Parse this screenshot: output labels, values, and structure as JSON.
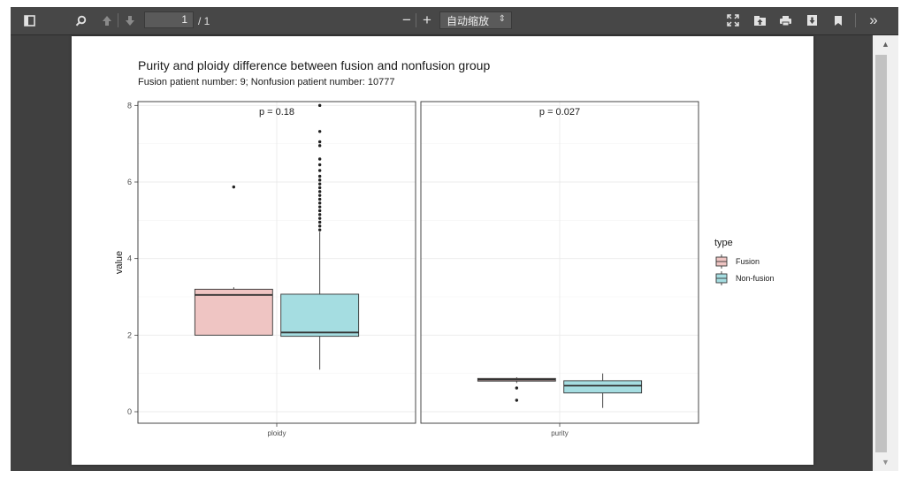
{
  "toolbar": {
    "page_number": "1",
    "page_count": "/ 1",
    "zoom_value": "自动缩放",
    "zoom_out_symbol": "−",
    "zoom_in_symbol": "+",
    "more_symbol": "»",
    "icons": [
      "sidebar-toggle-icon",
      "search-icon",
      "previous-page-icon",
      "next-page-icon",
      "zoom-out-icon",
      "zoom-in-icon",
      "presentation-mode-icon",
      "open-file-icon",
      "print-icon",
      "download-icon",
      "bookmark-icon",
      "tools-icon"
    ]
  },
  "chart_data": {
    "type": "boxplot",
    "title": "Purity and ploidy difference between fusion and nonfusion group",
    "subtitle": "Fusion patient number: 9; Nonfusion patient number: 10777",
    "ylabel": "value",
    "xlabel": "",
    "ylim": [
      -0.3,
      8.1
    ],
    "yticks": [
      0,
      2,
      4,
      6,
      8
    ],
    "grid": true,
    "legend_title": "type",
    "legend_position": "right",
    "series": [
      {
        "name": "Fusion",
        "fill": "#efc5c3",
        "stroke": "#333333"
      },
      {
        "name": "Non-fusion",
        "fill": "#a5dde1",
        "stroke": "#333333"
      }
    ],
    "panels": [
      {
        "facet": "ploidy",
        "annotation": "p = 0.18",
        "boxes": [
          {
            "series": "Fusion",
            "min": 2.0,
            "q1": 2.0,
            "median": 3.05,
            "q3": 3.2,
            "max": 3.25,
            "outliers": [
              5.87
            ]
          },
          {
            "series": "Non-fusion",
            "min": 1.1,
            "q1": 1.97,
            "median": 2.07,
            "q3": 3.07,
            "max": 4.7,
            "outliers": [
              4.75,
              4.85,
              4.95,
              5.05,
              5.15,
              5.25,
              5.35,
              5.45,
              5.55,
              5.65,
              5.75,
              5.85,
              5.95,
              6.05,
              6.15,
              6.3,
              6.45,
              6.6,
              6.95,
              7.05,
              7.32,
              8.0
            ]
          }
        ]
      },
      {
        "facet": "purity",
        "annotation": "p = 0.027",
        "boxes": [
          {
            "series": "Fusion",
            "min": 0.75,
            "q1": 0.8,
            "median": 0.84,
            "q3": 0.87,
            "max": 0.9,
            "outliers": [
              0.62,
              0.3
            ]
          },
          {
            "series": "Non-fusion",
            "min": 0.1,
            "q1": 0.49,
            "median": 0.68,
            "q3": 0.81,
            "max": 1.0,
            "outliers": []
          }
        ]
      }
    ]
  }
}
